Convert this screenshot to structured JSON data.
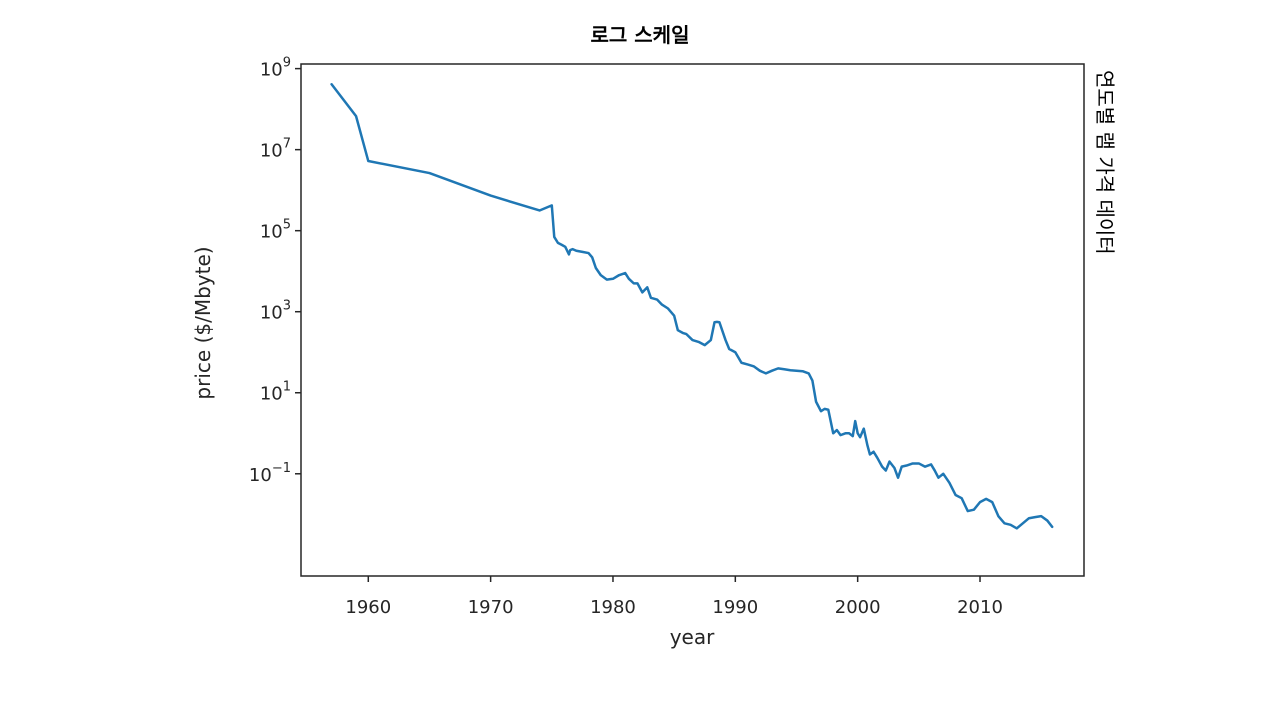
{
  "chart_data": {
    "type": "line",
    "title": "로그 스케일",
    "side_label": "연도별 램 가격 데이터",
    "xlabel": "year",
    "ylabel": "price ($/Mbyte)",
    "x_scale": "linear",
    "y_scale": "log",
    "xlim": [
      1954.5,
      2018.5
    ],
    "ylim": [
      0.0003,
      1300000000.0
    ],
    "x_ticks": [
      1960,
      1970,
      1980,
      1990,
      2000,
      2010
    ],
    "x_tick_labels": [
      "1960",
      "1970",
      "1980",
      "1990",
      "2000",
      "2010"
    ],
    "y_ticks": [
      1000000000.0,
      10000000.0,
      100000.0,
      1000.0,
      10,
      0.1
    ],
    "y_tick_labels": [
      {
        "base": "10",
        "exp": "9"
      },
      {
        "base": "10",
        "exp": "7"
      },
      {
        "base": "10",
        "exp": "5"
      },
      {
        "base": "10",
        "exp": "3"
      },
      {
        "base": "10",
        "exp": "1"
      },
      {
        "base": "10",
        "exp": "−1"
      }
    ],
    "grid": false,
    "line_color": "#1f77b4",
    "series": [
      {
        "x": [
          1957,
          1959,
          1960,
          1965,
          1970,
          1974,
          1975,
          1975.2,
          1975.5,
          1975.8,
          1976.1,
          1976.4,
          1976.5,
          1976.7,
          1977,
          1977.5,
          1978,
          1978.3,
          1978.6,
          1979,
          1979.5,
          1980,
          1980.5,
          1981,
          1981.3,
          1981.7,
          1982,
          1982.4,
          1982.8,
          1983.1,
          1983.6,
          1984,
          1984.5,
          1985,
          1985.3,
          1985.7,
          1986,
          1986.5,
          1987,
          1987.5,
          1988,
          1988.3,
          1988.5,
          1988.7,
          1989.2,
          1989.5,
          1990,
          1990.5,
          1991,
          1991.5,
          1992,
          1992.5,
          1993,
          1993.5,
          1994,
          1994.5,
          1995,
          1995.5,
          1996,
          1996.3,
          1996.6,
          1997,
          1997.3,
          1997.6,
          1998,
          1998.3,
          1998.6,
          1999,
          1999.3,
          1999.6,
          1999.8,
          2000,
          2000.2,
          2000.5,
          2000.8,
          2001,
          2001.3,
          2001.6,
          2002,
          2002.3,
          2002.6,
          2003,
          2003.3,
          2003.6,
          2004,
          2004.5,
          2005,
          2005.5,
          2006,
          2006.3,
          2006.6,
          2007,
          2007.5,
          2008,
          2008.5,
          2009,
          2009.5,
          2010,
          2010.5,
          2011,
          2011.5,
          2012,
          2012.5,
          2013,
          2013.5,
          2014,
          2014.5,
          2015,
          2015.5,
          2015.9
        ],
        "y": [
          411000000,
          67200000,
          5240000,
          2640000,
          734000,
          315000,
          421000,
          70000,
          50000,
          45000,
          40000,
          26000,
          33000,
          35000,
          32000,
          30000,
          28000,
          22000,
          12000,
          8000,
          6200,
          6500,
          8000,
          9000,
          6500,
          5000,
          5000,
          3000,
          4000,
          2200,
          2000,
          1500,
          1200,
          800,
          350,
          300,
          280,
          200,
          180,
          150,
          200,
          550,
          560,
          550,
          200,
          120,
          100,
          55,
          50,
          45,
          35,
          30,
          35,
          40,
          38,
          36,
          35,
          34,
          30,
          20,
          6,
          3.5,
          4,
          3.8,
          1.0,
          1.2,
          0.9,
          1.0,
          1.0,
          0.85,
          2.0,
          1.0,
          0.8,
          1.3,
          0.5,
          0.3,
          0.35,
          0.25,
          0.15,
          0.12,
          0.2,
          0.14,
          0.08,
          0.15,
          0.16,
          0.18,
          0.18,
          0.15,
          0.17,
          0.12,
          0.08,
          0.1,
          0.06,
          0.03,
          0.025,
          0.012,
          0.013,
          0.02,
          0.024,
          0.02,
          0.009,
          0.006,
          0.0055,
          0.0045,
          0.006,
          0.008,
          0.0085,
          0.009,
          0.007,
          0.0049
        ]
      }
    ]
  }
}
